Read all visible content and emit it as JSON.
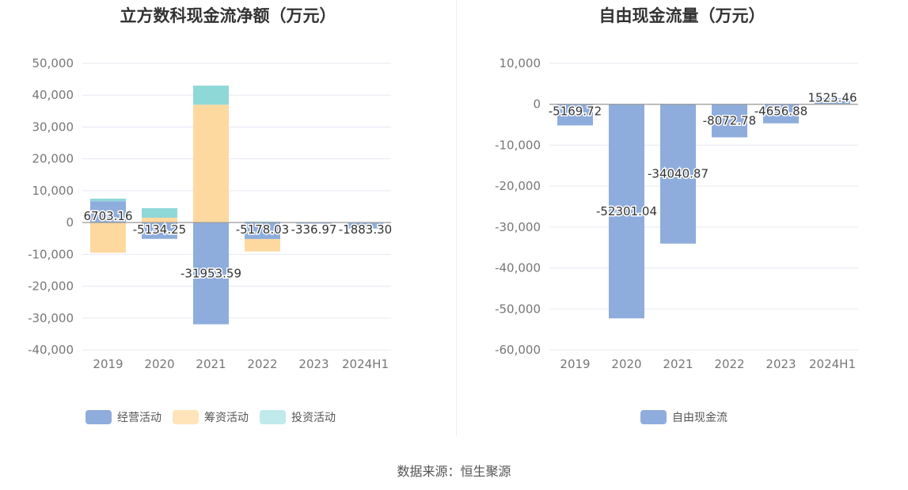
{
  "chart_data": [
    {
      "type": "bar",
      "stacked": true,
      "title": "立方数科现金流净额（万元）",
      "categories": [
        "2019",
        "2020",
        "2021",
        "2022",
        "2023",
        "2024H1"
      ],
      "y_ticks": [
        "50,000",
        "40,000",
        "30,000",
        "20,000",
        "10,000",
        "0",
        "-10,000",
        "-20,000",
        "-30,000",
        "-40,000"
      ],
      "ylim": [
        -40000,
        50000
      ],
      "grid": true,
      "legend_position": "bottom",
      "series": [
        {
          "name": "经营活动",
          "color": "#8eaddc",
          "values": [
            6703.16,
            -5134.25,
            -31953.59,
            -5178.03,
            -336.97,
            -1883.3
          ]
        },
        {
          "name": "筹资活动",
          "color": "#fed99f",
          "values": [
            -9500,
            1500,
            37000,
            -3900,
            0,
            0
          ]
        },
        {
          "name": "投资活动",
          "color": "#8ed8d8",
          "values": [
            800,
            3000,
            6000,
            300,
            0,
            0
          ]
        }
      ],
      "data_labels": [
        "6703.16",
        "-5134.25",
        "-31953.59",
        "-5178.03",
        "-336.97",
        "-1883.30"
      ]
    },
    {
      "type": "bar",
      "title": "自由现金流量（万元）",
      "categories": [
        "2019",
        "2020",
        "2021",
        "2022",
        "2023",
        "2024H1"
      ],
      "y_ticks": [
        "10,000",
        "0",
        "-10,000",
        "-20,000",
        "-30,000",
        "-40,000",
        "-50,000",
        "-60,000"
      ],
      "ylim": [
        -60000,
        10000
      ],
      "grid": true,
      "legend_position": "bottom",
      "series": [
        {
          "name": "自由现金流",
          "color": "#8eaddc",
          "values": [
            -5169.72,
            -52301.04,
            -34040.87,
            -8072.78,
            -4656.88,
            1525.46
          ]
        }
      ],
      "data_labels": [
        "-5169.72",
        "-52301.04",
        "-34040.87",
        "-8072.78",
        "-4656.88",
        "1525.46"
      ]
    }
  ],
  "footer": {
    "source": "数据来源：恒生聚源"
  }
}
